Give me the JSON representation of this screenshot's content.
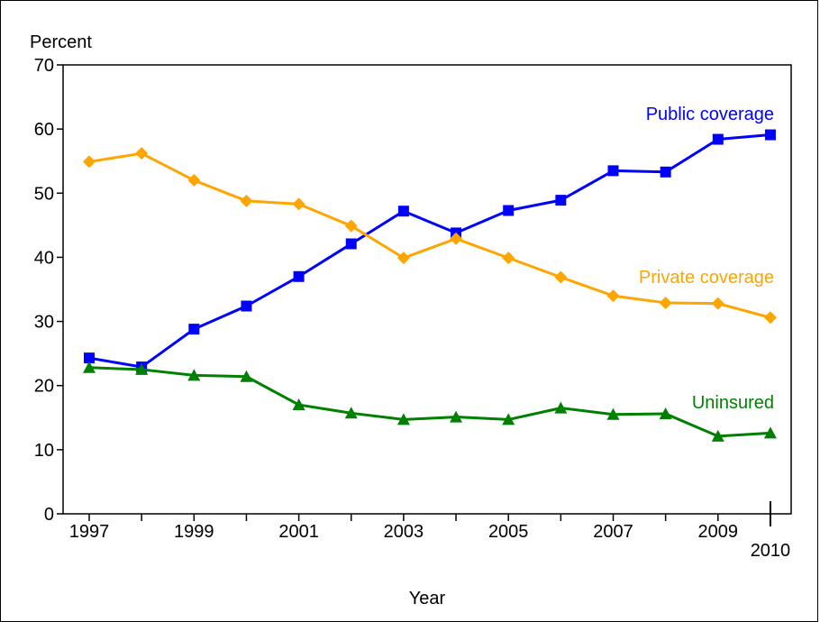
{
  "chart_data": {
    "type": "line",
    "ylabel": "Percent",
    "xlabel": "Year",
    "ylim": [
      0,
      70
    ],
    "yticks": [
      0,
      10,
      20,
      30,
      40,
      50,
      60,
      70
    ],
    "x": [
      1997,
      1998,
      1999,
      2000,
      2001,
      2002,
      2003,
      2004,
      2005,
      2006,
      2007,
      2008,
      2009,
      2010
    ],
    "xtick_labels": [
      "1997",
      "1999",
      "2001",
      "2003",
      "2005",
      "2007",
      "2009",
      "2010"
    ],
    "grid": false,
    "series": [
      {
        "name": "Public coverage",
        "color": "#0000ff",
        "marker": "square",
        "values": [
          24.3,
          22.9,
          28.8,
          32.4,
          37.0,
          42.1,
          47.2,
          43.8,
          47.3,
          48.9,
          53.5,
          53.3,
          58.4,
          59.1
        ]
      },
      {
        "name": "Private coverage",
        "color": "#ffa500",
        "marker": "diamond",
        "values": [
          54.9,
          56.2,
          52.0,
          48.8,
          48.3,
          44.9,
          39.9,
          42.9,
          39.9,
          36.9,
          34.0,
          32.9,
          32.8,
          30.6
        ]
      },
      {
        "name": "Uninsured",
        "color": "#008000",
        "marker": "triangle",
        "values": [
          22.8,
          22.5,
          21.6,
          21.4,
          17.0,
          15.7,
          14.7,
          15.1,
          14.7,
          16.5,
          15.5,
          15.6,
          12.1,
          12.6
        ]
      }
    ]
  }
}
